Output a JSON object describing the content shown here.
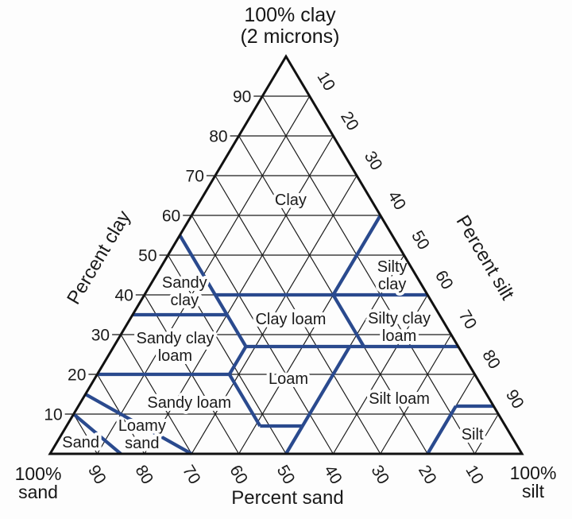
{
  "figure": {
    "corner_top": [
      "100% clay",
      "(2 microns)"
    ],
    "corner_bottom_left": [
      "100%",
      "sand"
    ],
    "corner_bottom_right": [
      "100%",
      "silt"
    ]
  },
  "chart_data": {
    "type": "ternary",
    "coordinate_order": [
      "clay",
      "sand",
      "silt"
    ],
    "grid_interval": 10,
    "corners": {
      "top": "100% clay (2 microns)",
      "bottom_left": "100% sand",
      "bottom_right": "100% silt"
    },
    "axes": {
      "left": {
        "label": "Percent clay",
        "ticks": [
          90,
          80,
          70,
          60,
          50,
          40,
          30,
          20,
          10
        ]
      },
      "right": {
        "label": "Percent silt",
        "ticks": [
          10,
          20,
          30,
          40,
          50,
          60,
          70,
          80,
          90
        ]
      },
      "bottom": {
        "label": "Percent sand",
        "ticks": [
          90,
          80,
          70,
          60,
          50,
          40,
          30,
          20,
          10
        ]
      }
    },
    "regions": [
      {
        "name": "Clay",
        "lines": [
          "Clay"
        ],
        "label_at": [
          64,
          17,
          19
        ]
      },
      {
        "name": "Silty clay",
        "lines": [
          "Silty",
          "clay"
        ],
        "label_at": [
          45,
          5,
          50
        ]
      },
      {
        "name": "Sandy clay",
        "lines": [
          "Sandy",
          "clay"
        ],
        "label_at": [
          41,
          51,
          8
        ]
      },
      {
        "name": "Clay loam",
        "lines": [
          "Clay loam"
        ],
        "label_at": [
          34,
          32,
          34
        ]
      },
      {
        "name": "Silty clay loam",
        "lines": [
          "Silty clay",
          "loam"
        ],
        "label_at": [
          32,
          10,
          58
        ]
      },
      {
        "name": "Sandy clay loam",
        "lines": [
          "Sandy clay",
          "loam"
        ],
        "label_at": [
          27,
          60,
          13
        ]
      },
      {
        "name": "Loam",
        "lines": [
          "Loam"
        ],
        "label_at": [
          19,
          40,
          41
        ]
      },
      {
        "name": "Sandy loam",
        "lines": [
          "Sandy loam"
        ],
        "label_at": [
          13,
          64,
          23
        ]
      },
      {
        "name": "Silt loam",
        "lines": [
          "Silt loam"
        ],
        "label_at": [
          14,
          19,
          67
        ]
      },
      {
        "name": "Loamy sand",
        "lines": [
          "Loamy",
          "sand"
        ],
        "label_at": [
          5,
          78,
          17
        ]
      },
      {
        "name": "Sand",
        "lines": [
          "Sand"
        ],
        "label_at": [
          3,
          92,
          5
        ]
      },
      {
        "name": "Silt",
        "lines": [
          "Silt"
        ],
        "label_at": [
          5,
          8,
          87
        ]
      }
    ],
    "boundaries": [
      {
        "from": [
          55,
          45,
          0
        ],
        "to": [
          27,
          45,
          28
        ]
      },
      {
        "from": [
          35,
          65,
          0
        ],
        "to": [
          35,
          45,
          20
        ]
      },
      {
        "from": [
          40,
          45,
          15
        ],
        "to": [
          40,
          0,
          60
        ]
      },
      {
        "from": [
          60,
          0,
          40
        ],
        "to": [
          40,
          20,
          40
        ]
      },
      {
        "from": [
          40,
          20,
          40
        ],
        "to": [
          27,
          20,
          53
        ]
      },
      {
        "from": [
          27,
          45,
          28
        ],
        "to": [
          27,
          0,
          73
        ]
      },
      {
        "from": [
          27,
          45,
          28
        ],
        "to": [
          20,
          52,
          28
        ]
      },
      {
        "from": [
          20,
          80,
          0
        ],
        "to": [
          20,
          52,
          28
        ]
      },
      {
        "from": [
          20,
          52,
          28
        ],
        "to": [
          7,
          52,
          41
        ]
      },
      {
        "from": [
          7,
          52,
          41
        ],
        "to": [
          7,
          43,
          50
        ]
      },
      {
        "from": [
          27,
          23,
          50
        ],
        "to": [
          0,
          50,
          50
        ]
      },
      {
        "from": [
          15,
          85,
          0
        ],
        "to": [
          0,
          70,
          30
        ]
      },
      {
        "from": [
          10,
          90,
          0
        ],
        "to": [
          0,
          85,
          15
        ]
      },
      {
        "from": [
          0,
          20,
          80
        ],
        "to": [
          12,
          8,
          80
        ]
      },
      {
        "from": [
          12,
          8,
          80
        ],
        "to": [
          12,
          0,
          88
        ]
      }
    ],
    "colors": {
      "boundary_blue": "#2a4a8e",
      "grid_black": "#1c1c1c",
      "outline_black": "#111111",
      "text": "#1a1a1a",
      "background": "#fdfdfd"
    }
  }
}
